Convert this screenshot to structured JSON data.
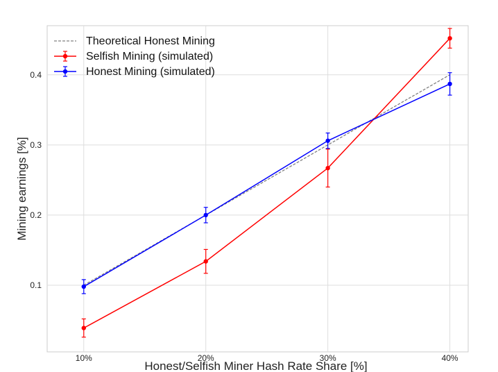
{
  "chart_data": {
    "type": "line",
    "title": "",
    "xlabel": "Honest/Selfish Miner Hash Rate Share [%]",
    "ylabel": "Mining earnings [%]",
    "categories": [
      "10%",
      "20%",
      "30%",
      "40%"
    ],
    "x": [
      0.1,
      0.2,
      0.3,
      0.4
    ],
    "xlim": [
      0.07,
      0.415
    ],
    "ylim": [
      0.005,
      0.47
    ],
    "yticks": [
      0.1,
      0.2,
      0.3,
      0.4
    ],
    "ytick_labels": [
      "0.1",
      "0.2",
      "0.3",
      "0.4"
    ],
    "grid": true,
    "legend_position": "top-left",
    "series": [
      {
        "name": "Theoretical Honest Mining",
        "style": "dashed",
        "color": "#808080",
        "values": [
          0.1,
          0.2,
          0.3,
          0.4
        ]
      },
      {
        "name": "Selfish Mining (simulated)",
        "style": "solid-errorbar",
        "color": "#ff0000",
        "values": [
          0.039,
          0.134,
          0.267,
          0.452
        ],
        "errors": [
          0.013,
          0.017,
          0.027,
          0.014
        ]
      },
      {
        "name": "Honest Mining (simulated)",
        "style": "solid-errorbar",
        "color": "#0000ff",
        "values": [
          0.098,
          0.2,
          0.306,
          0.387
        ],
        "errors": [
          0.01,
          0.011,
          0.011,
          0.016
        ]
      }
    ]
  }
}
